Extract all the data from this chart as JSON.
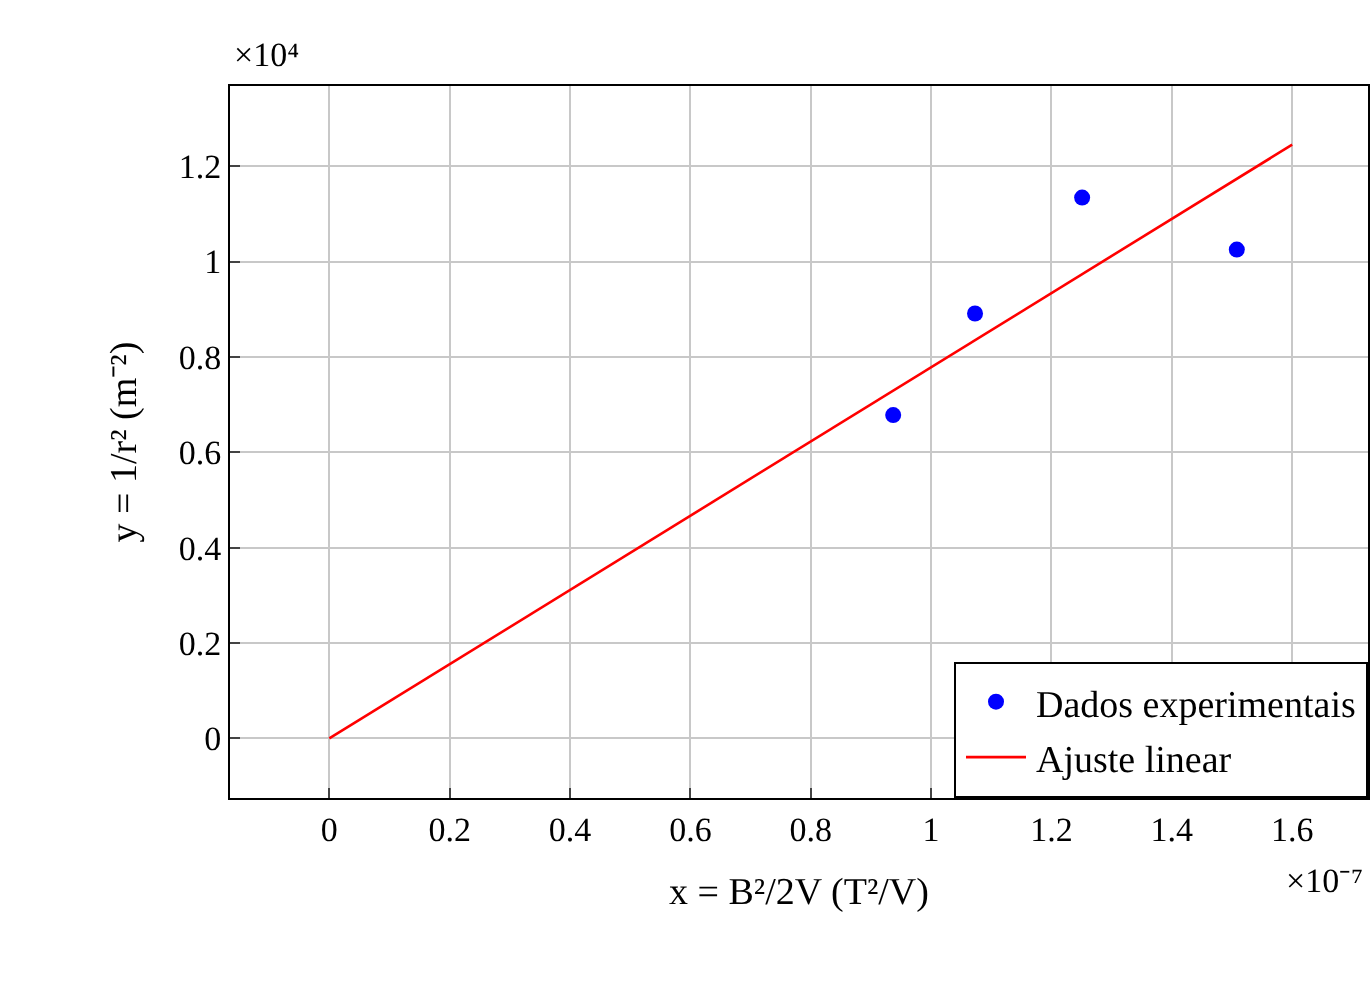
{
  "chart_data": {
    "type": "scatter",
    "xlabel": "x = B²/2V (T²/V)",
    "ylabel": "y = 1/r² (m⁻²)",
    "annotations": [
      "×10⁴",
      "×10⁻⁷"
    ],
    "series": [
      {
        "name": "Dados experimentais",
        "color": "#0000ff",
        "marker": "circle",
        "x": [
          0.937,
          1.073,
          1.251,
          1.508
        ],
        "values": [
          0.678,
          0.891,
          1.134,
          1.025
        ]
      },
      {
        "name": "Ajuste linear",
        "type": "line",
        "color": "#ff0000",
        "line_style": "solid",
        "x": [
          0,
          1.6
        ],
        "values": [
          0,
          1.245
        ]
      }
    ],
    "xlim": [
      -0.165,
      1.726
    ],
    "ylim": [
      -0.125,
      1.368
    ],
    "xticks": [
      0,
      0.2,
      0.4,
      0.6,
      0.8,
      1,
      1.2,
      1.4,
      1.6
    ],
    "yticks": [
      0,
      0.2,
      0.4,
      0.6,
      0.8,
      1,
      1.2
    ],
    "grid": true,
    "legend": "bottom right"
  }
}
